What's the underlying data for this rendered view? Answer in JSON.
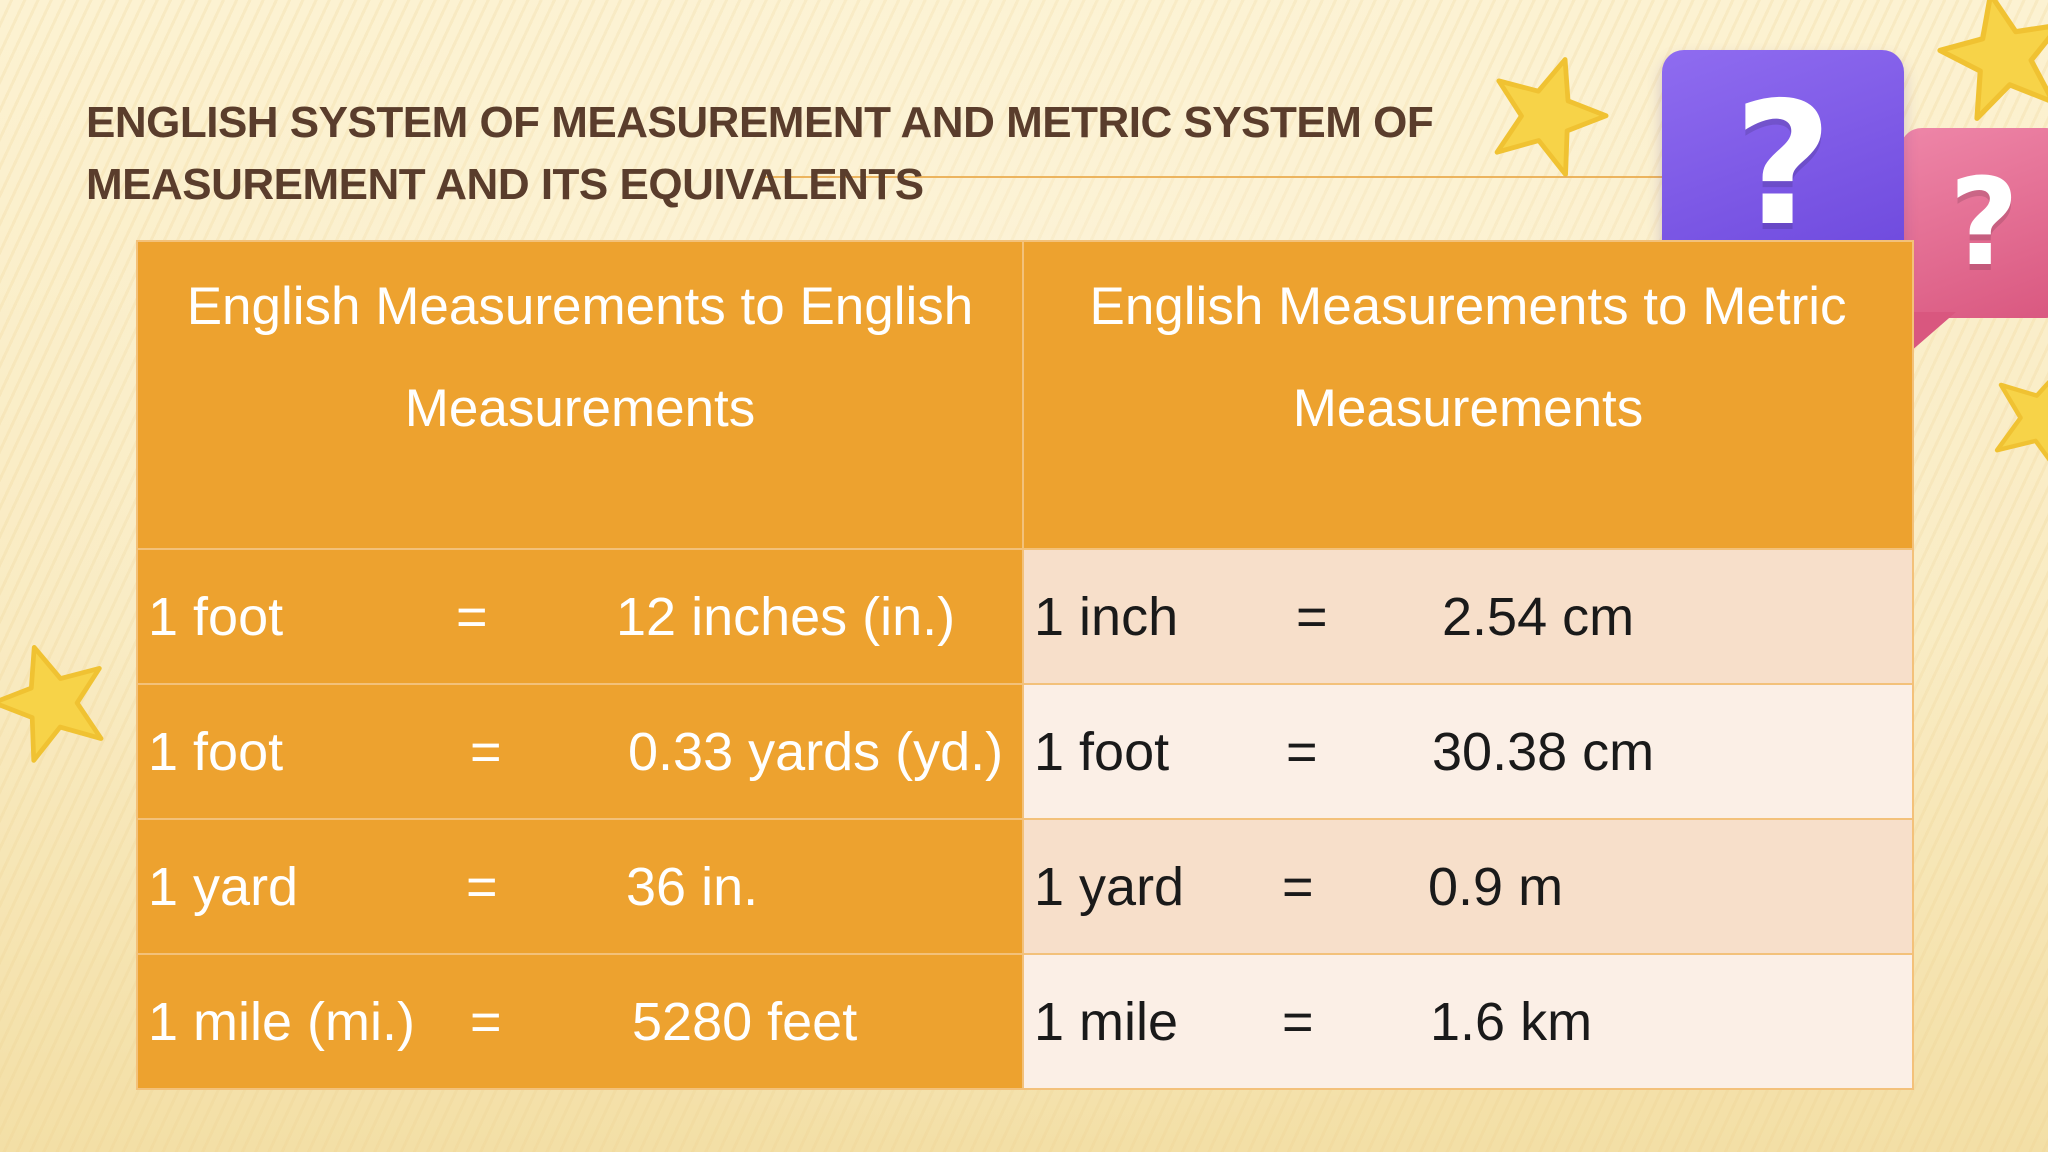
{
  "slide": {
    "title": "English System of Measurement and Metric System of Measurement and its Equivalents"
  },
  "decorations": {
    "purple_bubble_glyph": "?",
    "pink_bubble_glyph": "?",
    "colors": {
      "header_fill": "#eda22f",
      "left_column_fill": "#eda22f",
      "right_row_odd_fill": "#f7dfca",
      "right_row_even_fill": "#fbefe6",
      "title_text": "#5a3d2c",
      "purple_bubble": "#7a55e4",
      "pink_bubble": "#e06a90",
      "star": "#f7d348"
    }
  },
  "table": {
    "headers": [
      "English Measurements to English Measurements",
      "English Measurements to Metric Measurements"
    ],
    "rows": [
      {
        "english": {
          "unit": "1 foot",
          "eq": "=",
          "value": "12 inches (in.)"
        },
        "metric": {
          "unit": "1 inch",
          "eq": "=",
          "value": "2.54 cm"
        }
      },
      {
        "english": {
          "unit": "1 foot",
          "eq": "=",
          "value": "0.33 yards (yd.)"
        },
        "metric": {
          "unit": "1 foot",
          "eq": "=",
          "value": "30.38 cm"
        }
      },
      {
        "english": {
          "unit": "1 yard",
          "eq": "=",
          "value": "36 in."
        },
        "metric": {
          "unit": "1 yard",
          "eq": "=",
          "value": "0.9 m"
        }
      },
      {
        "english": {
          "unit": "1 mile (mi.)",
          "eq": "=",
          "value": "5280 feet"
        },
        "metric": {
          "unit": "1 mile",
          "eq": "=",
          "value": "1.6 km"
        }
      }
    ]
  }
}
